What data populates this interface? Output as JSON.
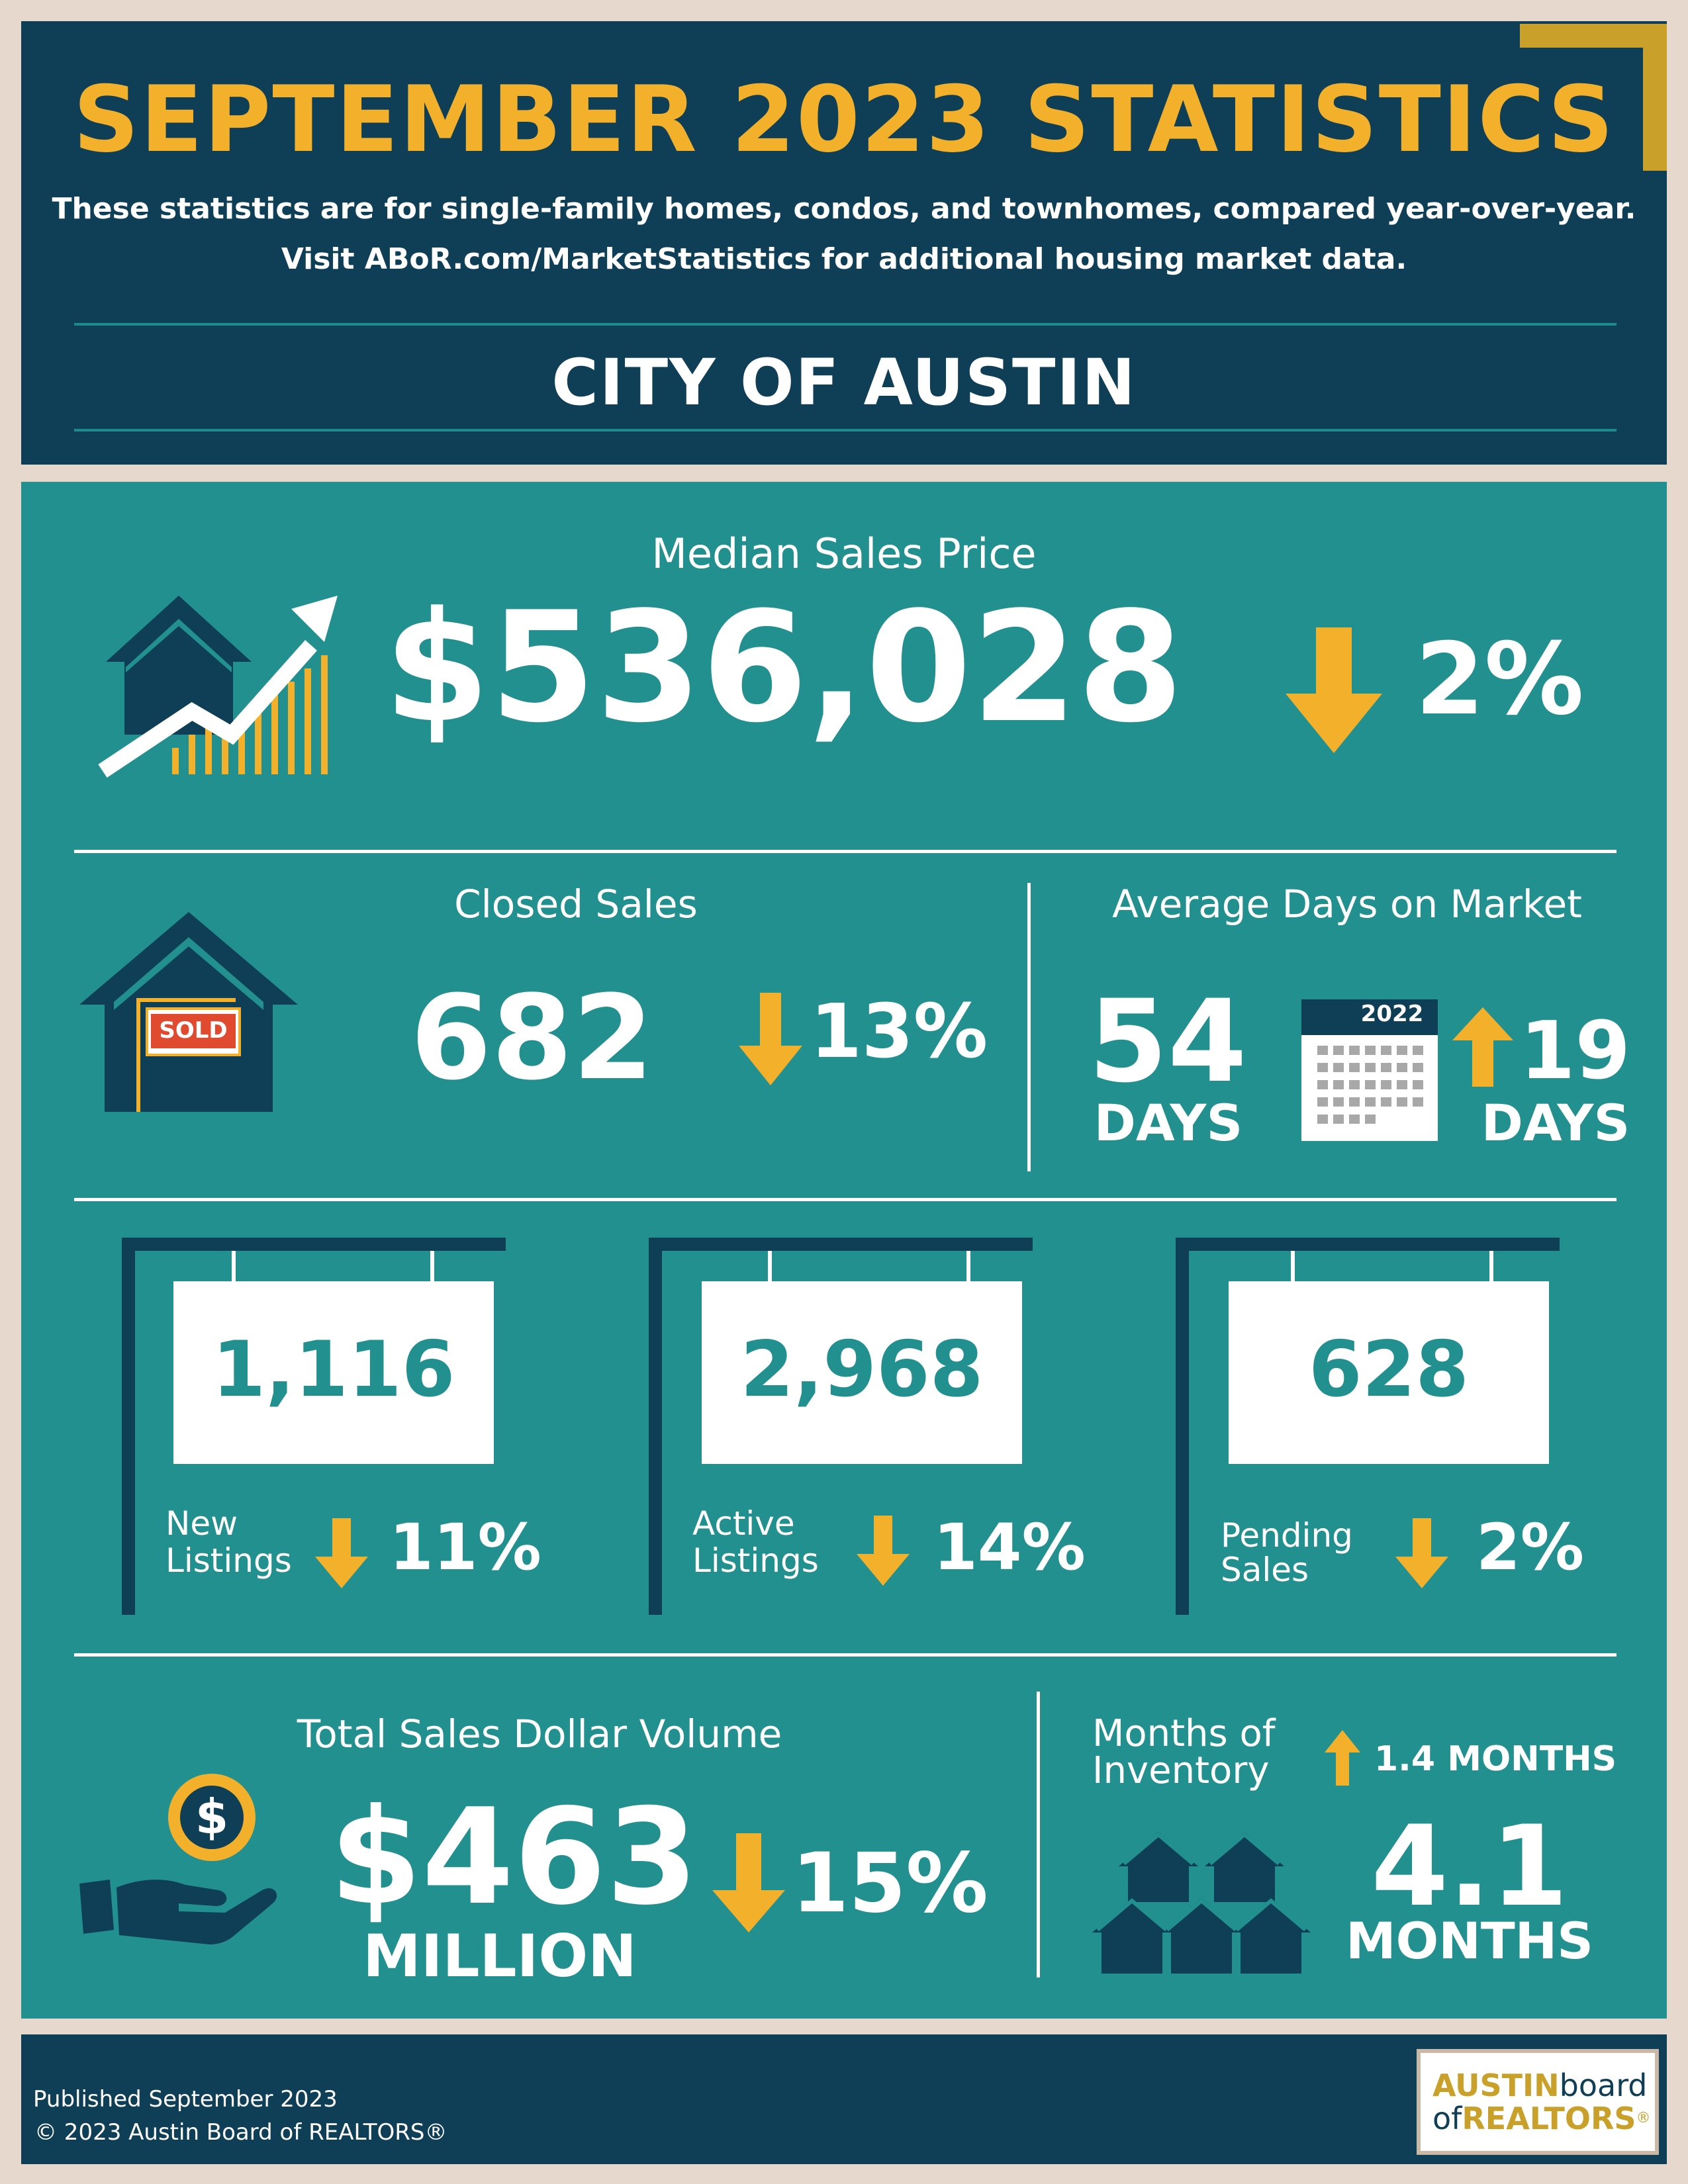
{
  "header": {
    "title": "SEPTEMBER 2023 STATISTICS",
    "subtitle_line1": "These statistics are for single-family homes, condos, and townhomes, compared year-over-year.",
    "subtitle_line2": "Visit ABoR.com/MarketStatistics for additional housing market data.",
    "city": "CITY OF AUSTIN"
  },
  "median_sales_price": {
    "label": "Median Sales Price",
    "value": "$536,028",
    "change": "2%",
    "direction": "down"
  },
  "closed_sales": {
    "label": "Closed Sales",
    "value": "682",
    "change": "13%",
    "direction": "down",
    "sign_text": "SOLD"
  },
  "average_days_on_market": {
    "label": "Average Days on Market",
    "value": "54",
    "unit": "DAYS",
    "calendar_year": "2022",
    "change": "19",
    "change_unit": "DAYS",
    "direction": "up"
  },
  "new_listings": {
    "value": "1,116",
    "label_line1": "New",
    "label_line2": "Listings",
    "change": "11%",
    "direction": "down"
  },
  "active_listings": {
    "value": "2,968",
    "label_line1": "Active",
    "label_line2": "Listings",
    "change": "14%",
    "direction": "down"
  },
  "pending_sales": {
    "value": "628",
    "label_line1": "Pending",
    "label_line2": "Sales",
    "change": "2%",
    "direction": "down"
  },
  "total_sales_dollar_volume": {
    "label": "Total Sales Dollar Volume",
    "value": "$463",
    "unit": "MILLION",
    "change": "15%",
    "direction": "down"
  },
  "months_of_inventory": {
    "label_line1": "Months of",
    "label_line2": "Inventory",
    "change": "1.4 MONTHS",
    "direction": "up",
    "value": "4.1",
    "unit": "MONTHS"
  },
  "footer": {
    "published": "Published September 2023",
    "copyright": "© 2023 Austin Board of REALTORS®",
    "logo_austin": "AUSTIN",
    "logo_board": "board",
    "logo_of": "of",
    "logo_realtors": "REALTORS",
    "logo_reg": "®"
  },
  "colors": {
    "navy": "#0f3f57",
    "teal": "#21908f",
    "gold": "#f2b02b",
    "white": "#ffffff",
    "beige": "#e6d8cd"
  },
  "icons": [
    "house-growth-chart-icon",
    "sold-house-icon",
    "calendar-icon",
    "hanging-sign-icon",
    "money-hand-icon",
    "houses-cluster-icon",
    "arrow-down-icon",
    "arrow-up-icon"
  ]
}
